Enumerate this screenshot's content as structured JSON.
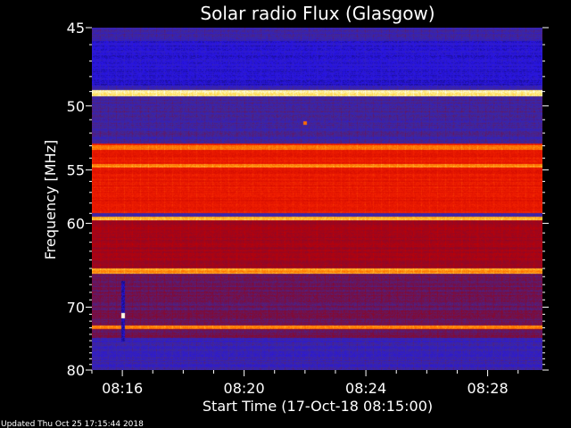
{
  "chart_data": {
    "type": "heatmap",
    "title": "Solar radio Flux (Glasgow)",
    "xlabel": "Start Time (17-Oct-18 08:15:00)",
    "ylabel": "Frequency [MHz]",
    "x_tick_labels": [
      "08:16",
      "08:20",
      "08:24",
      "08:28"
    ],
    "x_ticks_minutes": [
      16,
      20,
      24,
      28
    ],
    "xlim_minutes": [
      15.0,
      29.8
    ],
    "y_tick_labels": [
      "45",
      "50",
      "55",
      "60",
      "70",
      "80"
    ],
    "y_ticks_mhz": [
      45,
      50,
      55,
      60,
      70,
      80
    ],
    "y_scale": "reciprocal",
    "ylim_mhz": [
      45,
      80
    ],
    "colormap": "blue-red-yellow-white",
    "background_level": 0.2,
    "bands": [
      {
        "low_mhz": 45.8,
        "high_mhz": 48.6,
        "level": 0.12
      },
      {
        "low_mhz": 48.9,
        "high_mhz": 49.3,
        "level": 0.95
      },
      {
        "low_mhz": 49.3,
        "high_mhz": 52.8,
        "level": 0.22
      },
      {
        "low_mhz": 52.8,
        "high_mhz": 59.0,
        "level": 0.62
      },
      {
        "low_mhz": 53.0,
        "high_mhz": 53.3,
        "level": 0.8
      },
      {
        "low_mhz": 54.5,
        "high_mhz": 54.8,
        "level": 0.82
      },
      {
        "low_mhz": 59.3,
        "high_mhz": 59.7,
        "level": 0.88
      },
      {
        "low_mhz": 59.7,
        "high_mhz": 65.0,
        "level": 0.42
      },
      {
        "low_mhz": 65.0,
        "high_mhz": 65.6,
        "level": 0.84
      },
      {
        "low_mhz": 65.6,
        "high_mhz": 74.5,
        "level": 0.3
      },
      {
        "low_mhz": 72.6,
        "high_mhz": 73.2,
        "level": 0.82
      },
      {
        "low_mhz": 74.5,
        "high_mhz": 80.0,
        "level": 0.2
      }
    ],
    "burst_column": {
      "time_minutes": 16.0,
      "low_mhz": 66.5,
      "high_mhz": 75.0,
      "bright_mhz": 71.2,
      "spot_mhz": 75.3
    },
    "spot": {
      "time_minutes": 22.0,
      "mhz": 51.2
    },
    "colors": {
      "background": "#000000",
      "text": "#ffffff"
    }
  },
  "footer": {
    "updated": "Updated Thu Oct 25 17:15:44 2018"
  }
}
